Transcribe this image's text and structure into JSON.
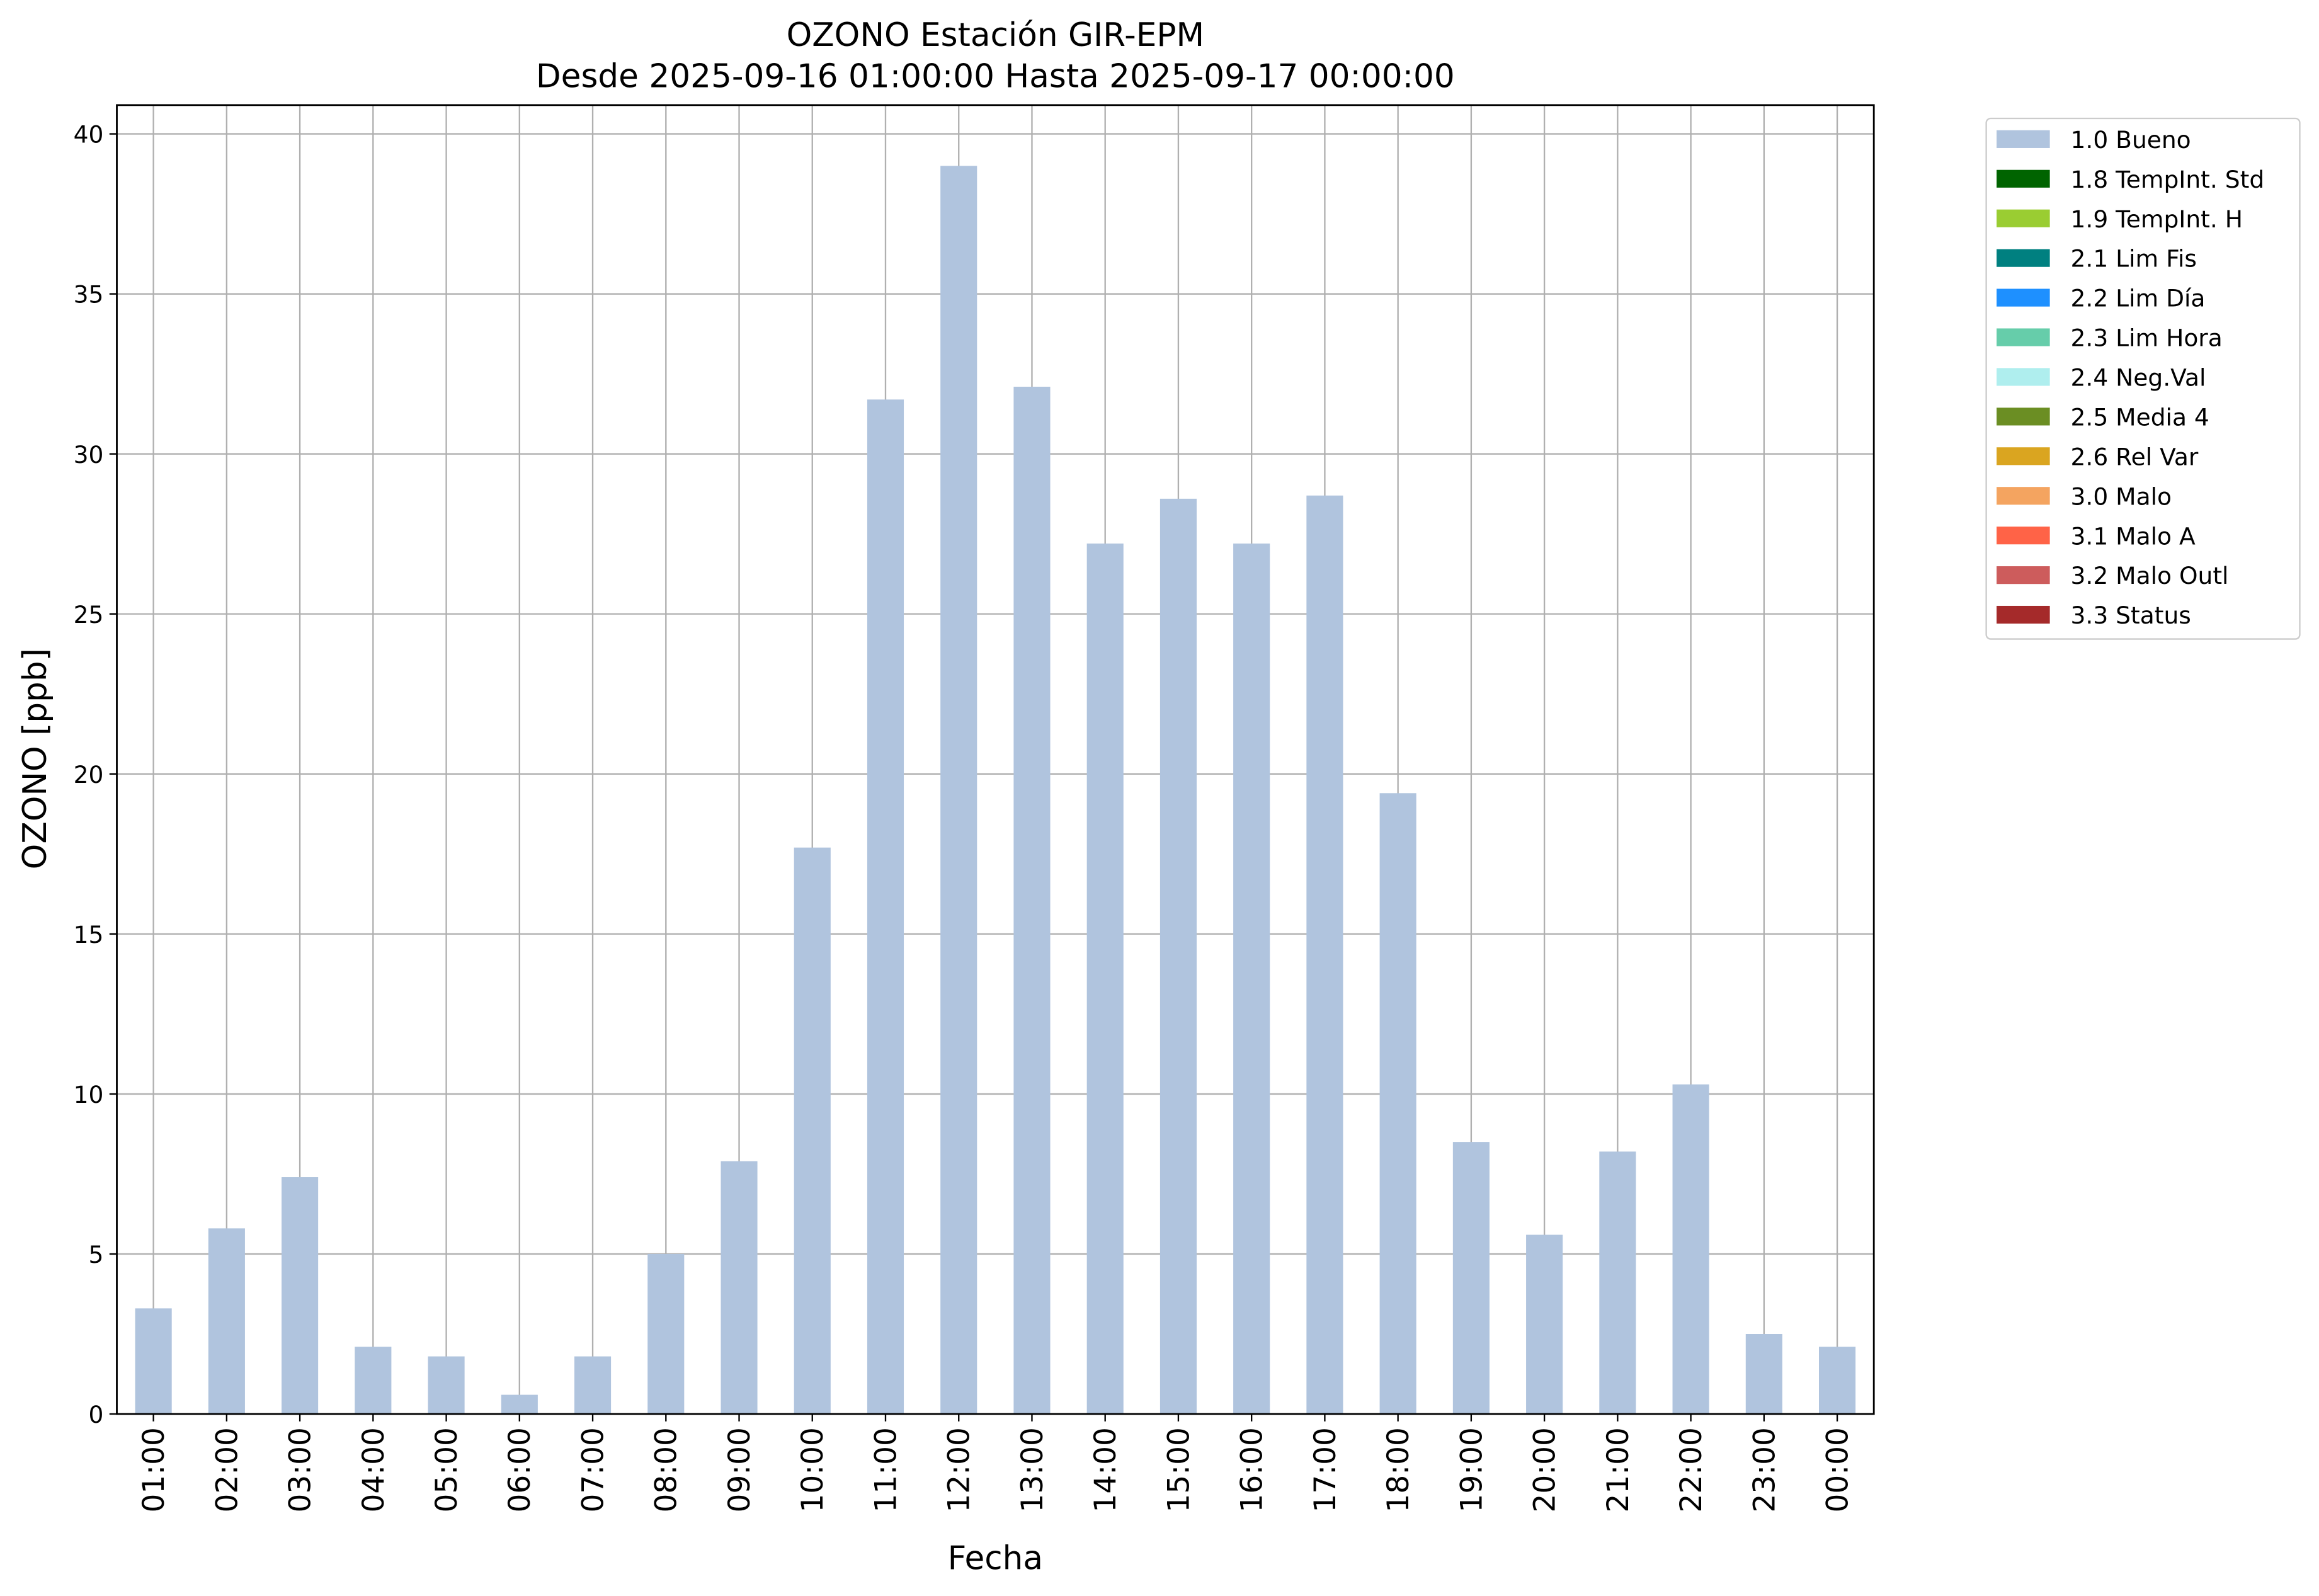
{
  "chart_data": {
    "type": "bar",
    "title": "OZONO Estación GIR-EPM",
    "subtitle": "Desde 2025-09-16 01:00:00 Hasta 2025-09-17 00:00:00",
    "x_label": "Fecha",
    "y_label": "OZONO [ppb]",
    "categories": [
      "01:00",
      "02:00",
      "03:00",
      "04:00",
      "05:00",
      "06:00",
      "07:00",
      "08:00",
      "09:00",
      "10:00",
      "11:00",
      "12:00",
      "13:00",
      "14:00",
      "15:00",
      "16:00",
      "17:00",
      "18:00",
      "19:00",
      "20:00",
      "21:00",
      "22:00",
      "23:00",
      "00:00"
    ],
    "series": [
      {
        "name": "1.0 Bueno",
        "color": "#b0c4de",
        "values": [
          3.3,
          5.8,
          7.4,
          2.1,
          1.8,
          0.6,
          1.8,
          5.0,
          7.9,
          17.7,
          31.7,
          39.0,
          32.1,
          27.2,
          28.6,
          27.2,
          28.7,
          19.4,
          8.5,
          5.6,
          8.2,
          10.3,
          2.5,
          2.1
        ]
      },
      {
        "name": "1.8 TempInt. Std",
        "color": "#006400",
        "values": [
          0,
          0,
          0,
          0,
          0,
          0,
          0,
          0,
          0,
          0,
          0,
          0,
          0,
          0,
          0,
          0,
          0,
          0,
          0,
          0,
          0,
          0,
          0,
          0
        ]
      },
      {
        "name": "1.9 TempInt. H",
        "color": "#9acd32",
        "values": [
          0,
          0,
          0,
          0,
          0,
          0,
          0,
          0,
          0,
          0,
          0,
          0,
          0,
          0,
          0,
          0,
          0,
          0,
          0,
          0,
          0,
          0,
          0,
          0
        ]
      },
      {
        "name": "2.1 Lim Fis",
        "color": "#008080",
        "values": [
          0,
          0,
          0,
          0,
          0,
          0,
          0,
          0,
          0,
          0,
          0,
          0,
          0,
          0,
          0,
          0,
          0,
          0,
          0,
          0,
          0,
          0,
          0,
          0
        ]
      },
      {
        "name": "2.2 Lim Día",
        "color": "#1e90ff",
        "values": [
          0,
          0,
          0,
          0,
          0,
          0,
          0,
          0,
          0,
          0,
          0,
          0,
          0,
          0,
          0,
          0,
          0,
          0,
          0,
          0,
          0,
          0,
          0,
          0
        ]
      },
      {
        "name": "2.3 Lim Hora",
        "color": "#66cdaa",
        "values": [
          0,
          0,
          0,
          0,
          0,
          0,
          0,
          0,
          0,
          0,
          0,
          0,
          0,
          0,
          0,
          0,
          0,
          0,
          0,
          0,
          0,
          0,
          0,
          0
        ]
      },
      {
        "name": "2.4 Neg.Val",
        "color": "#afeeee",
        "values": [
          0,
          0,
          0,
          0,
          0,
          0,
          0,
          0,
          0,
          0,
          0,
          0,
          0,
          0,
          0,
          0,
          0,
          0,
          0,
          0,
          0,
          0,
          0,
          0
        ]
      },
      {
        "name": "2.5 Media 4",
        "color": "#6b8e23",
        "values": [
          0,
          0,
          0,
          0,
          0,
          0,
          0,
          0,
          0,
          0,
          0,
          0,
          0,
          0,
          0,
          0,
          0,
          0,
          0,
          0,
          0,
          0,
          0,
          0
        ]
      },
      {
        "name": "2.6 Rel Var",
        "color": "#daa520",
        "values": [
          0,
          0,
          0,
          0,
          0,
          0,
          0,
          0,
          0,
          0,
          0,
          0,
          0,
          0,
          0,
          0,
          0,
          0,
          0,
          0,
          0,
          0,
          0,
          0
        ]
      },
      {
        "name": "3.0 Malo",
        "color": "#f4a460",
        "values": [
          0,
          0,
          0,
          0,
          0,
          0,
          0,
          0,
          0,
          0,
          0,
          0,
          0,
          0,
          0,
          0,
          0,
          0,
          0,
          0,
          0,
          0,
          0,
          0
        ]
      },
      {
        "name": "3.1 Malo A",
        "color": "#ff6347",
        "values": [
          0,
          0,
          0,
          0,
          0,
          0,
          0,
          0,
          0,
          0,
          0,
          0,
          0,
          0,
          0,
          0,
          0,
          0,
          0,
          0,
          0,
          0,
          0,
          0
        ]
      },
      {
        "name": "3.2 Malo Outl",
        "color": "#cd5c5c",
        "values": [
          0,
          0,
          0,
          0,
          0,
          0,
          0,
          0,
          0,
          0,
          0,
          0,
          0,
          0,
          0,
          0,
          0,
          0,
          0,
          0,
          0,
          0,
          0,
          0
        ]
      },
      {
        "name": "3.3 Status",
        "color": "#a52a2a",
        "values": [
          0,
          0,
          0,
          0,
          0,
          0,
          0,
          0,
          0,
          0,
          0,
          0,
          0,
          0,
          0,
          0,
          0,
          0,
          0,
          0,
          0,
          0,
          0,
          0
        ]
      }
    ],
    "ylim": [
      0,
      40.9
    ],
    "yticks": [
      0,
      5,
      10,
      15,
      20,
      25,
      30,
      35,
      40
    ],
    "grid": true,
    "stacked": true,
    "legend": "outside-upper-right"
  }
}
